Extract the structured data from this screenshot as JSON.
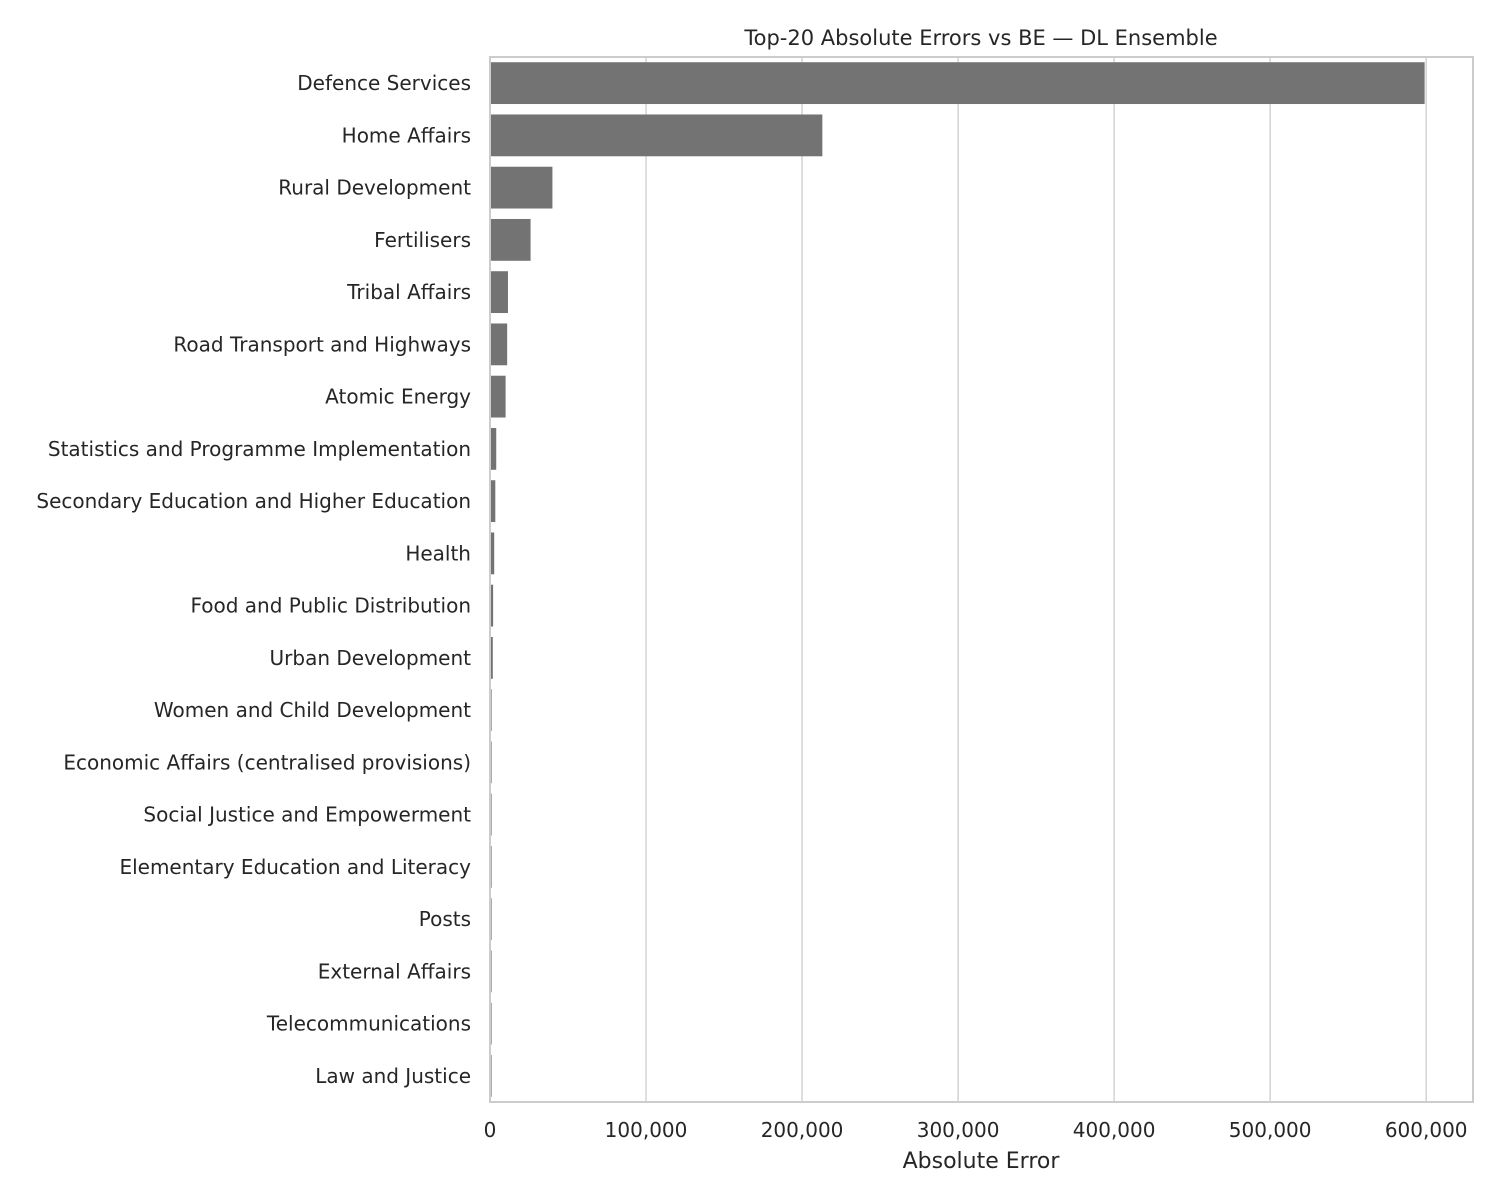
{
  "chart_data": {
    "type": "bar",
    "orientation": "horizontal",
    "title": "Top-20 Absolute Errors vs BE — DL Ensemble",
    "xlabel": "Absolute Error",
    "ylabel": "",
    "xlim": [
      0,
      630000
    ],
    "xticks": [
      0,
      100000,
      200000,
      300000,
      400000,
      500000,
      600000
    ],
    "xtick_labels": [
      "0",
      "100,000",
      "200,000",
      "300,000",
      "400,000",
      "500,000",
      "600,000"
    ],
    "grid": "vertical",
    "bar_color": "#737373",
    "grid_color": "#d6d6d6",
    "frame_color": "#cccccc",
    "categories": [
      "Defence Services",
      "Home Affairs",
      "Rural Development",
      "Fertilisers",
      "Tribal Affairs",
      "Road Transport and Highways",
      "Atomic Energy",
      "Statistics and Programme Implementation",
      "Secondary Education and Higher Education",
      "Health",
      "Food and Public Distribution",
      "Urban Development",
      "Women and Child Development",
      "Economic Affairs (centralised provisions)",
      "Social Justice and Empowerment",
      "Elementary Education and Literacy",
      "Posts",
      "External Affairs",
      "Telecommunications",
      "Law and Justice"
    ],
    "values": [
      599000,
      213000,
      40000,
      26000,
      11500,
      11000,
      10000,
      4000,
      3400,
      2700,
      2000,
      1800,
      900,
      400,
      300,
      250,
      200,
      150,
      120,
      100
    ]
  }
}
